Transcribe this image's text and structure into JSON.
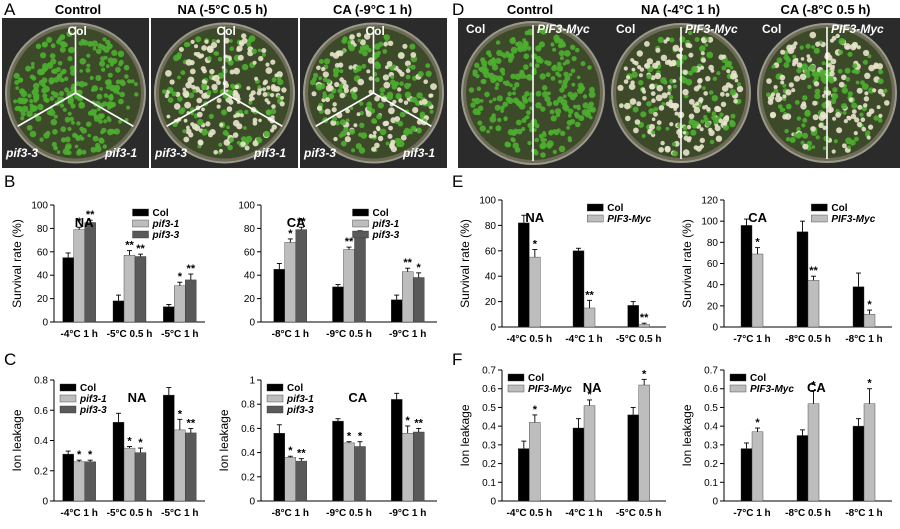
{
  "colors": {
    "black_bar": "#000000",
    "light_gray_bar": "#bdbdbd",
    "dark_gray_bar": "#595959",
    "seedling_green": "#4caf2f",
    "bleached": "#e8e4cc",
    "plate_bg": "#2a2a2a"
  },
  "panels": {
    "A": {
      "letter": "A",
      "titles": [
        "Control",
        "NA (-5°C 0.5 h)",
        "CA (-9°C 1 h)"
      ],
      "dish_labels": {
        "top": "Col",
        "left": "pif3-3",
        "right": "pif3-1"
      },
      "health": [
        1.0,
        0.35,
        0.55
      ]
    },
    "D": {
      "letter": "D",
      "titles": [
        "Control",
        "NA (-4°C 1 h)",
        "CA (-8°C 0.5 h)"
      ],
      "dish_labels": {
        "left": "Col",
        "right": "PIF3-Myc"
      },
      "health": [
        1.0,
        0.35,
        0.5
      ]
    },
    "B": {
      "letter": "B"
    },
    "C": {
      "letter": "C"
    },
    "E": {
      "letter": "E"
    },
    "F": {
      "letter": "F"
    }
  },
  "chart_data": [
    {
      "id": "B1",
      "type": "bar",
      "panel": "B",
      "title": "NA",
      "ylabel": "Survival rate (%)",
      "xlabel": "",
      "ylim": [
        0,
        100
      ],
      "yticks": [
        0,
        20,
        40,
        60,
        80,
        100
      ],
      "categories": [
        "-4°C 1 h",
        "-5°C 0.5 h",
        "-5°C 1 h"
      ],
      "legend": "top-right",
      "series": [
        {
          "name": "Col",
          "color": "#000000",
          "values": [
            55,
            18,
            13
          ],
          "errors": [
            4,
            5,
            2
          ],
          "sig": [
            "",
            "",
            ""
          ]
        },
        {
          "name": "pif3-1",
          "color": "#bdbdbd",
          "values": [
            79,
            57,
            31
          ],
          "errors": [
            2,
            4,
            3
          ],
          "sig": [
            "*",
            "**",
            "*"
          ]
        },
        {
          "name": "pif3-3",
          "color": "#595959",
          "values": [
            85,
            56,
            36
          ],
          "errors": [
            2,
            2,
            5
          ],
          "sig": [
            "**",
            "**",
            "**"
          ]
        }
      ]
    },
    {
      "id": "B2",
      "type": "bar",
      "panel": "B",
      "title": "CA",
      "ylabel": "",
      "xlabel": "",
      "ylim": [
        0,
        100
      ],
      "yticks": [
        0,
        20,
        40,
        60,
        80,
        100
      ],
      "categories": [
        "-8°C 1 h",
        "-9°C 0.5 h",
        "-9°C 1 h"
      ],
      "legend": "top-right",
      "series": [
        {
          "name": "Col",
          "color": "#000000",
          "values": [
            45,
            30,
            19
          ],
          "errors": [
            5,
            2,
            4
          ],
          "sig": [
            "",
            "",
            ""
          ]
        },
        {
          "name": "pif3-1",
          "color": "#bdbdbd",
          "values": [
            68,
            62,
            43
          ],
          "errors": [
            3,
            2,
            3
          ],
          "sig": [
            "*",
            "**",
            "**"
          ]
        },
        {
          "name": "pif3-3",
          "color": "#595959",
          "values": [
            79,
            75,
            38
          ],
          "errors": [
            2,
            3,
            4
          ],
          "sig": [
            "**",
            "**",
            "*"
          ]
        }
      ]
    },
    {
      "id": "C1",
      "type": "bar",
      "panel": "C",
      "title": "NA",
      "ylabel": "Ion leakage",
      "xlabel": "",
      "ylim": [
        0,
        0.8
      ],
      "yticks": [
        0,
        0.2,
        0.4,
        0.6,
        0.8
      ],
      "categories": [
        "-4°C 1 h",
        "-5°C 0.5 h",
        "-5°C 1 h"
      ],
      "legend": "top-left",
      "series": [
        {
          "name": "Col",
          "color": "#000000",
          "values": [
            0.31,
            0.52,
            0.7
          ],
          "errors": [
            0.02,
            0.06,
            0.05
          ],
          "sig": [
            "",
            "",
            ""
          ]
        },
        {
          "name": "pif3-1",
          "color": "#bdbdbd",
          "values": [
            0.26,
            0.35,
            0.47
          ],
          "errors": [
            0.01,
            0.01,
            0.07
          ],
          "sig": [
            "*",
            "*",
            "*"
          ]
        },
        {
          "name": "pif3-3",
          "color": "#595959",
          "values": [
            0.26,
            0.32,
            0.45
          ],
          "errors": [
            0.01,
            0.03,
            0.03
          ],
          "sig": [
            "*",
            "*",
            "**"
          ]
        }
      ]
    },
    {
      "id": "C2",
      "type": "bar",
      "panel": "C",
      "title": "CA",
      "ylabel": "Ion leakage",
      "xlabel": "",
      "ylim": [
        0,
        1
      ],
      "yticks": [
        0,
        0.2,
        0.4,
        0.6,
        0.8,
        1
      ],
      "categories": [
        "-8°C 1 h",
        "-9°C 0.5 h",
        "-9°C 1 h"
      ],
      "legend": "top-left",
      "series": [
        {
          "name": "Col",
          "color": "#000000",
          "values": [
            0.56,
            0.66,
            0.84
          ],
          "errors": [
            0.07,
            0.02,
            0.05
          ],
          "sig": [
            "",
            "",
            ""
          ]
        },
        {
          "name": "pif3-1",
          "color": "#bdbdbd",
          "values": [
            0.36,
            0.48,
            0.56
          ],
          "errors": [
            0.01,
            0.01,
            0.06
          ],
          "sig": [
            "*",
            "*",
            "*"
          ]
        },
        {
          "name": "pif3-3",
          "color": "#595959",
          "values": [
            0.33,
            0.45,
            0.57
          ],
          "errors": [
            0.02,
            0.04,
            0.03
          ],
          "sig": [
            "**",
            "*",
            "**"
          ]
        }
      ]
    },
    {
      "id": "E1",
      "type": "bar",
      "panel": "E",
      "title": "NA",
      "ylabel": "Survival rate (%)",
      "xlabel": "",
      "ylim": [
        0,
        100
      ],
      "yticks": [
        0,
        20,
        40,
        60,
        80,
        100
      ],
      "categories": [
        "-4°C 0.5 h",
        "-4°C 1 h",
        "-5°C 0.5 h"
      ],
      "legend": "top-right",
      "series": [
        {
          "name": "Col",
          "color": "#000000",
          "values": [
            82,
            60,
            17
          ],
          "errors": [
            6,
            2,
            3
          ],
          "sig": [
            "",
            "",
            ""
          ]
        },
        {
          "name": "PIF3-Myc",
          "color": "#bdbdbd",
          "values": [
            55,
            15,
            2
          ],
          "errors": [
            6,
            6,
            1
          ],
          "sig": [
            "*",
            "**",
            "**"
          ]
        }
      ]
    },
    {
      "id": "E2",
      "type": "bar",
      "panel": "E",
      "title": "CA",
      "ylabel": "Survival rate (%)",
      "xlabel": "",
      "ylim": [
        0,
        120
      ],
      "yticks": [
        0,
        20,
        40,
        60,
        80,
        100,
        120
      ],
      "categories": [
        "-7°C 1 h",
        "-8°C 0.5 h",
        "-8°C 1 h"
      ],
      "legend": "top-right",
      "series": [
        {
          "name": "Col",
          "color": "#000000",
          "values": [
            96,
            90,
            38
          ],
          "errors": [
            6,
            10,
            13
          ],
          "sig": [
            "",
            "",
            ""
          ]
        },
        {
          "name": "PIF3-Myc",
          "color": "#bdbdbd",
          "values": [
            69,
            44,
            12
          ],
          "errors": [
            6,
            4,
            4
          ],
          "sig": [
            "*",
            "**",
            "*"
          ]
        }
      ]
    },
    {
      "id": "F1",
      "type": "bar",
      "panel": "F",
      "title": "NA",
      "ylabel": "Ion leakage",
      "xlabel": "",
      "ylim": [
        0,
        0.7
      ],
      "yticks": [
        0,
        0.1,
        0.2,
        0.3,
        0.4,
        0.5,
        0.6,
        0.7
      ],
      "categories": [
        "-4°C 0.5 h",
        "-4°C 1 h",
        "-5°C 0.5 h"
      ],
      "legend": "top-left",
      "series": [
        {
          "name": "Col",
          "color": "#000000",
          "values": [
            0.28,
            0.39,
            0.46
          ],
          "errors": [
            0.04,
            0.05,
            0.04
          ],
          "sig": [
            "",
            "",
            ""
          ]
        },
        {
          "name": "PIF3-Myc",
          "color": "#bdbdbd",
          "values": [
            0.42,
            0.51,
            0.62
          ],
          "errors": [
            0.04,
            0.03,
            0.03
          ],
          "sig": [
            "*",
            "*",
            "*"
          ]
        }
      ]
    },
    {
      "id": "F2",
      "type": "bar",
      "panel": "F",
      "title": "CA",
      "ylabel": "Ion leakage",
      "xlabel": "",
      "ylim": [
        0,
        0.7
      ],
      "yticks": [
        0,
        0.1,
        0.2,
        0.3,
        0.4,
        0.5,
        0.6,
        0.7
      ],
      "categories": [
        "-7°C 1 h",
        "-8°C 0.5 h",
        "-8°C 1 h"
      ],
      "legend": "top-left",
      "series": [
        {
          "name": "Col",
          "color": "#000000",
          "values": [
            0.28,
            0.35,
            0.4
          ],
          "errors": [
            0.03,
            0.03,
            0.04
          ],
          "sig": [
            "",
            "",
            ""
          ]
        },
        {
          "name": "PIF3-Myc",
          "color": "#bdbdbd",
          "values": [
            0.37,
            0.52,
            0.52
          ],
          "errors": [
            0.02,
            0.07,
            0.08
          ],
          "sig": [
            "*",
            "*",
            "*"
          ]
        }
      ]
    }
  ]
}
